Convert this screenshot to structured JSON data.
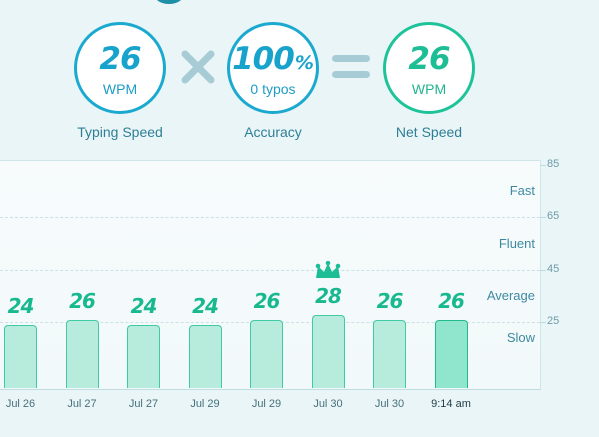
{
  "stats": [
    {
      "value": "26",
      "unit": "WPM",
      "label": "Typing Speed"
    },
    {
      "value": "100",
      "suffix": "%",
      "unit": "0 typos",
      "label": "Accuracy"
    },
    {
      "value": "26",
      "unit": "WPM",
      "label": "Net Speed"
    }
  ],
  "operators": {
    "times": "times-icon",
    "equals": "equals-icon"
  },
  "colors": {
    "accent_blue": "#1ba9cf",
    "accent_green": "#1ec39a",
    "bar_fill": "#b7ecdd",
    "bar_current": "#8fe6cd"
  },
  "chart_data": {
    "type": "bar",
    "categories": [
      "Jul 26",
      "Jul 27",
      "Jul 27",
      "Jul 29",
      "Jul 29",
      "Jul 30",
      "Jul 30",
      "9:14 am"
    ],
    "values": [
      24,
      26,
      24,
      24,
      26,
      28,
      26,
      26
    ],
    "best_index": 5,
    "current_index": 7,
    "y_ticks": [
      25,
      45,
      65,
      85
    ],
    "ylim": [
      0,
      85
    ],
    "bands": [
      "Slow",
      "Average",
      "Fluent",
      "Fast"
    ],
    "grid": true
  }
}
